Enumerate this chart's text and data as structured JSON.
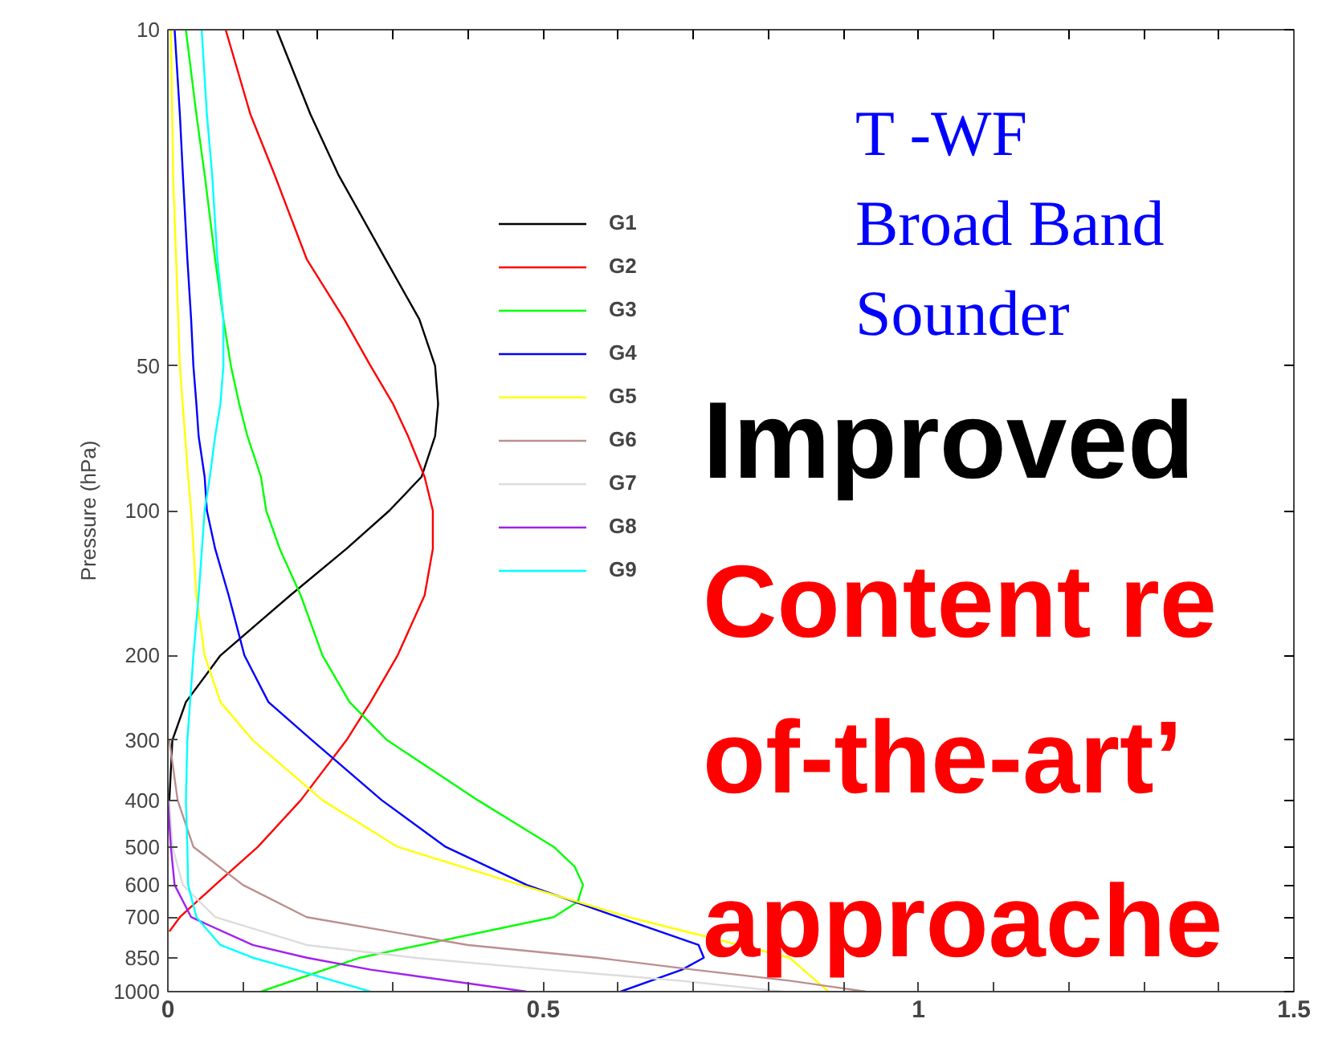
{
  "chart_data": {
    "type": "line",
    "ylabel": "Pressure (hPa)",
    "log": "y",
    "grid": false,
    "legend": "top",
    "marker": "none",
    "line_style": "solid",
    "xlim": [
      0,
      1.5
    ],
    "ylim": [
      1000,
      10
    ],
    "xticks": [
      0,
      {
        "value": 0.1,
        "label": null
      },
      {
        "value": 0.2,
        "label": null
      },
      {
        "value": 0.3,
        "label": null
      },
      {
        "value": 0.4,
        "label": null
      },
      0.5,
      {
        "value": 0.6,
        "label": null
      },
      {
        "value": 0.7,
        "label": null
      },
      {
        "value": 0.8,
        "label": null
      },
      {
        "value": 0.9,
        "label": null
      },
      1,
      {
        "value": 1.1,
        "label": null
      },
      {
        "value": 1.2,
        "label": null
      },
      {
        "value": 1.3,
        "label": null
      },
      {
        "value": 1.4,
        "label": null
      },
      1.5
    ],
    "yticks": [
      10,
      50,
      100,
      200,
      300,
      400,
      500,
      600,
      700,
      850,
      1000
    ],
    "series": [
      {
        "name": "G1",
        "color": "#000000",
        "x": [
          0.145,
          0.19,
          0.227,
          0.29,
          0.335,
          0.356,
          0.36,
          0.356,
          0.338,
          0.295,
          0.238,
          0.163,
          0.07,
          0.024,
          0.006,
          0.002,
          0
        ],
        "values": [
          10,
          15,
          20,
          30,
          40,
          50,
          60,
          70,
          85,
          100,
          120,
          150,
          200,
          250,
          300,
          400,
          450
        ]
      },
      {
        "name": "G2",
        "color": "#ff0000",
        "x": [
          0.077,
          0.11,
          0.142,
          0.185,
          0.235,
          0.27,
          0.3,
          0.32,
          0.342,
          0.353,
          0.353,
          0.342,
          0.306,
          0.27,
          0.238,
          0.177,
          0.12,
          0.063,
          0.016,
          0.002
        ],
        "values": [
          10,
          15,
          20,
          30,
          40,
          50,
          60,
          70,
          85,
          100,
          120,
          150,
          200,
          250,
          300,
          400,
          500,
          600,
          700,
          750
        ]
      },
      {
        "name": "G3",
        "color": "#00ff00",
        "x": [
          0.024,
          0.038,
          0.049,
          0.063,
          0.074,
          0.084,
          0.095,
          0.106,
          0.124,
          0.131,
          0.149,
          0.177,
          0.206,
          0.242,
          0.292,
          0.413,
          0.514,
          0.542,
          0.553,
          0.546,
          0.514,
          0.256,
          0.124
        ],
        "values": [
          10,
          15,
          20,
          30,
          40,
          50,
          60,
          70,
          85,
          100,
          120,
          150,
          200,
          250,
          300,
          400,
          500,
          550,
          600,
          650,
          700,
          850,
          1000
        ]
      },
      {
        "name": "G4",
        "color": "#0000ff",
        "x": [
          0.009,
          0.016,
          0.02,
          0.026,
          0.031,
          0.034,
          0.038,
          0.041,
          0.049,
          0.052,
          0.063,
          0.081,
          0.102,
          0.134,
          0.192,
          0.285,
          0.37,
          0.478,
          0.6,
          0.707,
          0.714,
          0.685,
          0.603
        ],
        "values": [
          10,
          15,
          20,
          30,
          40,
          50,
          60,
          70,
          85,
          100,
          120,
          150,
          200,
          250,
          300,
          400,
          500,
          600,
          700,
          800,
          850,
          900,
          1000
        ]
      },
      {
        "name": "G5",
        "color": "#ffff00",
        "x": [
          0.004,
          0.007,
          0.011,
          0.016,
          0.027,
          0.031,
          0.038,
          0.049,
          0.07,
          0.113,
          0.206,
          0.306,
          0.47,
          0.614,
          0.828,
          0.88
        ],
        "values": [
          10,
          20,
          30,
          50,
          85,
          100,
          150,
          200,
          250,
          300,
          400,
          500,
          600,
          700,
          850,
          1000
        ]
      },
      {
        "name": "G6",
        "color": "#bc8f8f",
        "x": [
          0.002,
          0.013,
          0.034,
          0.1,
          0.185,
          0.4,
          0.571,
          0.7,
          0.83,
          0.93
        ],
        "values": [
          300,
          400,
          500,
          600,
          700,
          800,
          850,
          900,
          950,
          1000
        ]
      },
      {
        "name": "G7",
        "color": "#dcdcdc",
        "x": [
          0.002,
          0.006,
          0.02,
          0.063,
          0.185,
          0.328,
          0.506,
          0.685,
          0.82
        ],
        "values": [
          400,
          500,
          600,
          700,
          800,
          850,
          900,
          950,
          1000
        ]
      },
      {
        "name": "G8",
        "color": "#a020f0",
        "x": [
          0,
          0.004,
          0.009,
          0.031,
          0.113,
          0.185,
          0.27,
          0.478
        ],
        "values": [
          400,
          500,
          600,
          700,
          800,
          850,
          900,
          1000
        ]
      },
      {
        "name": "G9",
        "color": "#00ffff",
        "x": [
          0.045,
          0.052,
          0.059,
          0.066,
          0.074,
          0.074,
          0.07,
          0.063,
          0.056,
          0.049,
          0.041,
          0.034,
          0.026,
          0.024,
          0.026,
          0.027,
          0.038,
          0.07,
          0.113,
          0.17,
          0.27
        ],
        "values": [
          10,
          15,
          20,
          30,
          40,
          50,
          60,
          70,
          85,
          100,
          150,
          200,
          300,
          400,
          500,
          600,
          700,
          800,
          850,
          900,
          1000
        ]
      }
    ],
    "annotations": [
      "T -WF",
      "Broad Band",
      "Sounder",
      "Improved",
      "Content re",
      "of-the-art’",
      "approache"
    ]
  }
}
